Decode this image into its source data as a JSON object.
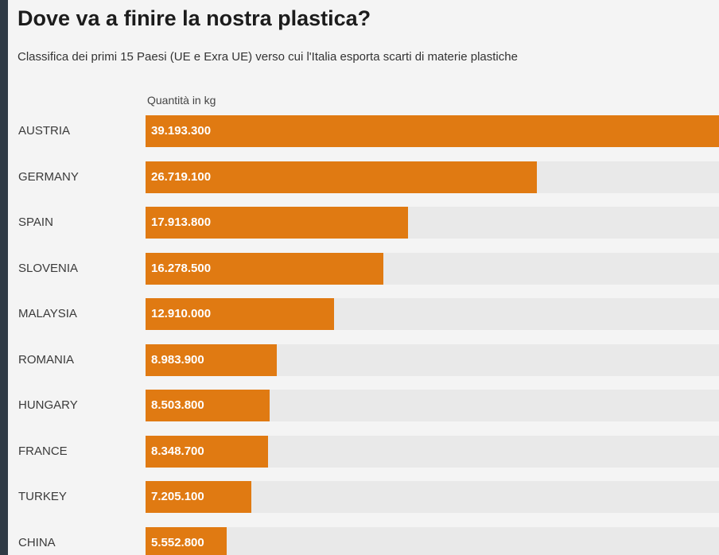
{
  "header": {
    "title": "Dove va a finire la nostra plastica?",
    "subtitle": "Classifica dei primi 15 Paesi (UE e Exra UE) verso cui l'Italia esporta scarti di materie plastiche"
  },
  "colors": {
    "bar": "#e07a12",
    "track": "#e9e9e9",
    "background": "#f4f4f4"
  },
  "chart_data": {
    "type": "bar",
    "orientation": "horizontal",
    "unit_label": "Quantità in kg",
    "categories": [
      "AUSTRIA",
      "GERMANY",
      "SPAIN",
      "SLOVENIA",
      "MALAYSIA",
      "ROMANIA",
      "HUNGARY",
      "FRANCE",
      "TURKEY",
      "CHINA"
    ],
    "values": [
      39193300,
      26719100,
      17913800,
      16278500,
      12910000,
      8983900,
      8503800,
      8348700,
      7205100,
      5552800
    ],
    "value_labels": [
      "39.193.300",
      "26.719.100",
      "17.913.800",
      "16.278.500",
      "12.910.000",
      "8.983.900",
      "8.503.800",
      "8.348.700",
      "7.205.100",
      "5.552.800"
    ],
    "xlim": [
      0,
      39193300
    ]
  }
}
